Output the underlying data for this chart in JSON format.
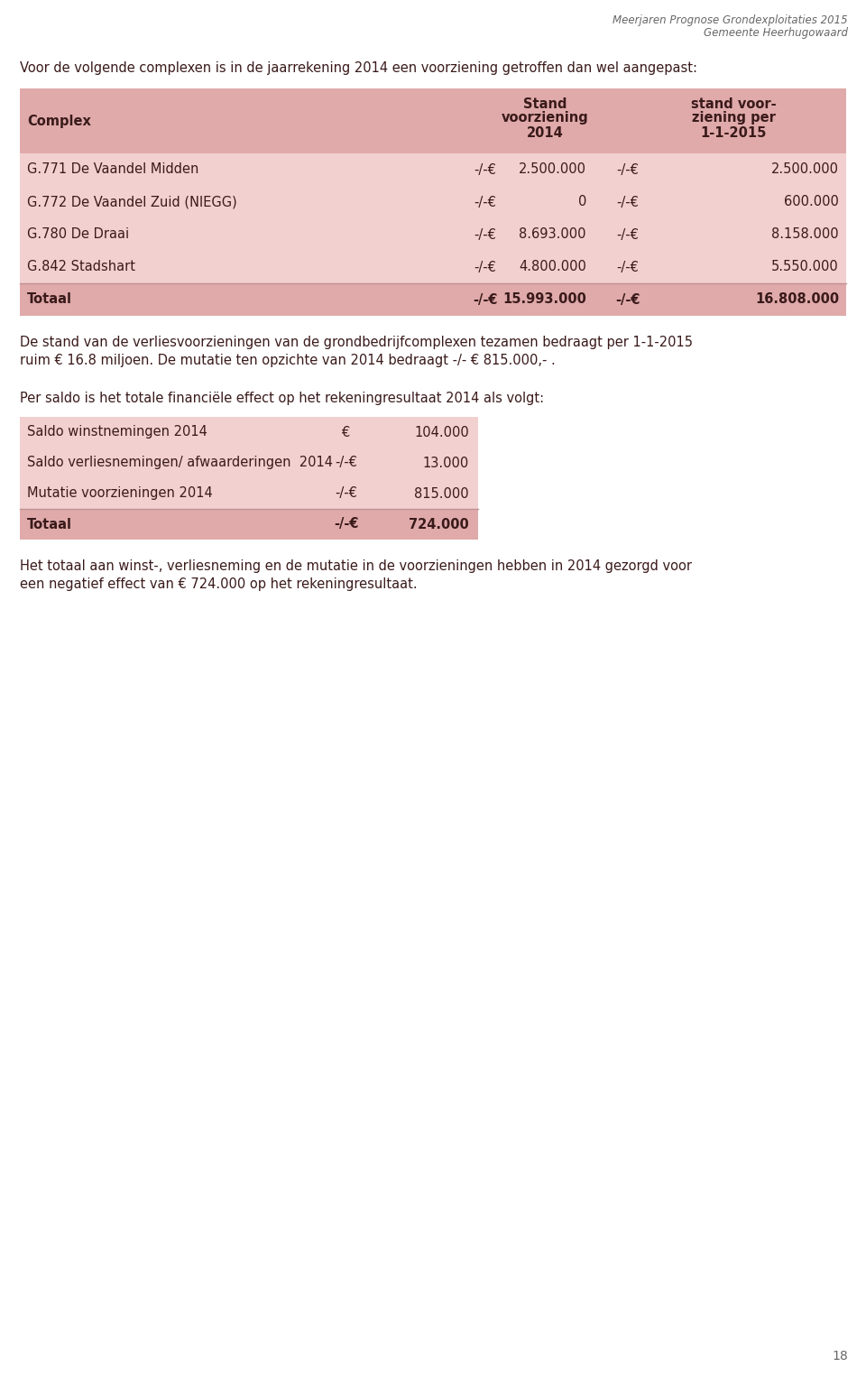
{
  "header_title_line1": "Meerjaren Prognose Grondexploitaties 2015",
  "header_title_line2": "Gemeente Heerhugowaard",
  "intro_text": "Voor de volgende complexen is in de jaarrekening 2014 een voorziening getroffen dan wel aangepast:",
  "table1_rows": [
    [
      "G.771 De Vaandel Midden",
      "-/-€",
      "2.500.000",
      "-/-€",
      "2.500.000"
    ],
    [
      "G.772 De Vaandel Zuid (NIEGG)",
      "-/-€",
      "0",
      "-/-€",
      "600.000"
    ],
    [
      "G.780 De Draai",
      "-/-€",
      "8.693.000",
      "-/-€",
      "8.158.000"
    ],
    [
      "G.842 Stadshart",
      "-/-€",
      "4.800.000",
      "-/-€",
      "5.550.000"
    ]
  ],
  "table1_totaal": [
    "Totaal",
    "-/-€",
    "15.993.000",
    "-/-€",
    "16.808.000"
  ],
  "para1_line1": "De stand van de verliesvoorzieningen van de grondbedrijfcomplexen tezamen bedraagt per 1-1-2015",
  "para1_line2": "ruim € 16.8 miljoen. De mutatie ten opzichte van 2014 bedraagt -/- € 815.000,- .",
  "para2": "Per saldo is het totale financiële effect op het rekeningresultaat 2014 als volgt:",
  "table2_rows": [
    [
      "Saldo winstnemingen 2014",
      "€",
      "104.000"
    ],
    [
      "Saldo verliesnemingen/ afwaarderingen  2014",
      "-/-€",
      "13.000"
    ],
    [
      "Mutatie voorzieningen 2014",
      "-/-€",
      "815.000"
    ]
  ],
  "table2_totaal": [
    "Totaal",
    "-/-€",
    "724.000"
  ],
  "para3_line1": "Het totaal aan winst-, verliesneming en de mutatie in de voorzieningen hebben in 2014 gezorgd voor",
  "para3_line2": "een negatief effect van € 724.000 op het rekeningresultaat.",
  "page_number": "18",
  "bg_color": "#ffffff",
  "table_bg": "#f2d0d0",
  "table_header_bg": "#e0aaaa",
  "totaal_bg": "#e0aaaa",
  "text_color": "#3a1a1a",
  "header_color": "#666666",
  "table_border_color": "#c09090"
}
